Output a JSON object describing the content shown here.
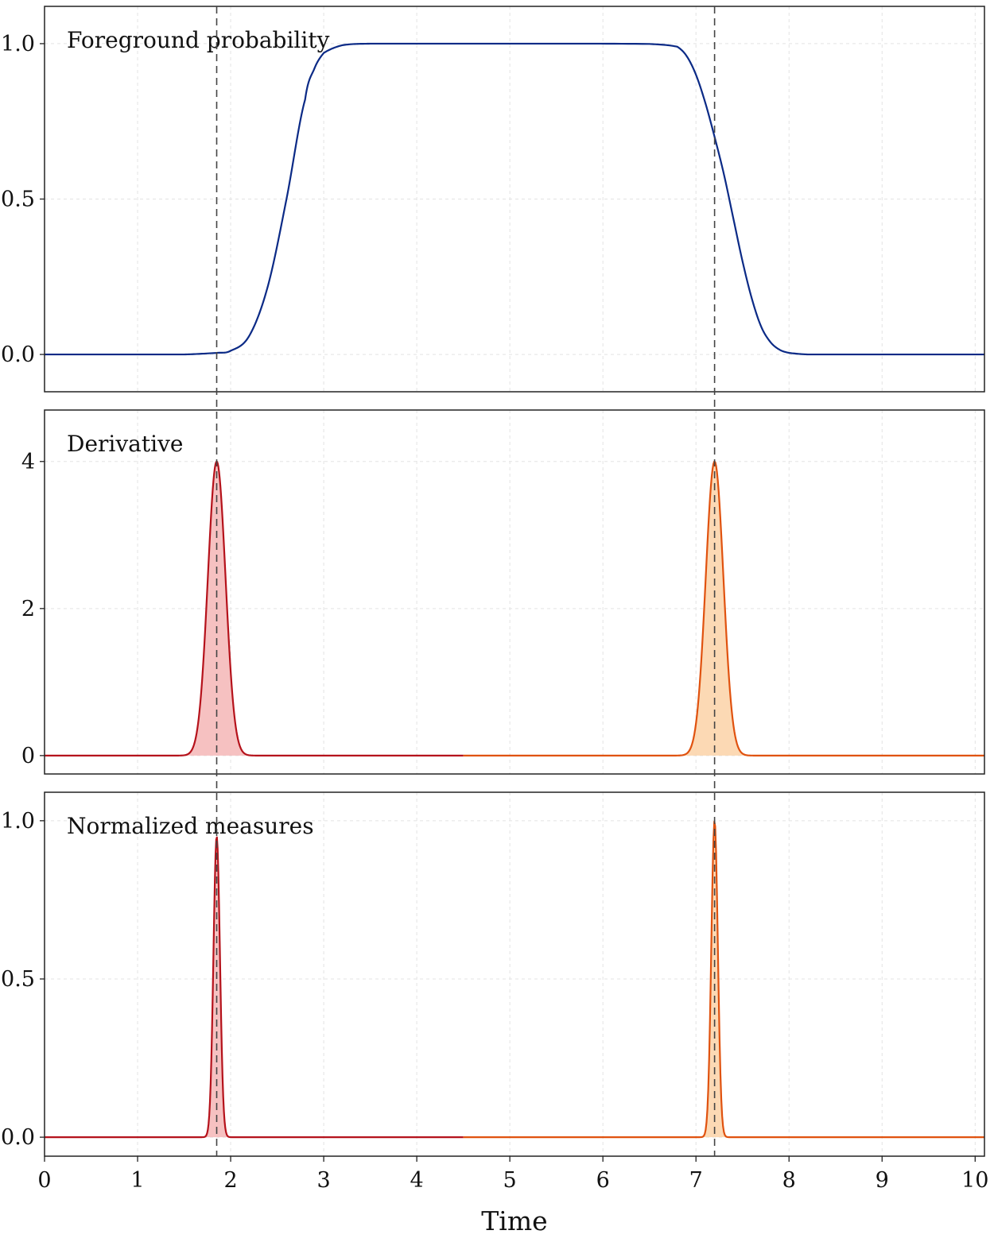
{
  "chart_data": {
    "type": "line",
    "shared_x": {
      "label": "Time",
      "xlim": [
        0,
        10.1
      ],
      "ticks": [
        0,
        1,
        2,
        3,
        4,
        5,
        6,
        7,
        8,
        9,
        10
      ],
      "tick_labels": [
        "0",
        "1",
        "2",
        "3",
        "4",
        "5",
        "6",
        "7",
        "8",
        "9",
        "10"
      ]
    },
    "vlines": [
      1.85,
      7.2
    ],
    "grid": true,
    "panels": [
      {
        "title": "Foreground probability",
        "ylim": [
          -0.12,
          1.12
        ],
        "yticks": [
          0.0,
          0.5,
          1.0
        ],
        "ytick_labels": [
          "0.0",
          "0.5",
          "1.0"
        ],
        "series": [
          {
            "color": "#0b2a86",
            "fill": false,
            "x": [
              0,
              1.5,
              1.85,
              2.0,
              2.2,
              2.4,
              2.6,
              2.8,
              2.9,
              3.0,
              3.2,
              3.5,
              5.0,
              6.5,
              6.8,
              6.9,
              7.0,
              7.1,
              7.2,
              7.3,
              7.4,
              7.5,
              7.6,
              7.7,
              7.8,
              7.9,
              8.0,
              8.2,
              10.1
            ],
            "y": [
              0,
              0,
              0.005,
              0.012,
              0.06,
              0.22,
              0.5,
              0.82,
              0.92,
              0.97,
              0.995,
              1.0,
              1.0,
              0.999,
              0.99,
              0.96,
              0.9,
              0.81,
              0.7,
              0.58,
              0.44,
              0.3,
              0.18,
              0.09,
              0.04,
              0.015,
              0.005,
              0.0,
              0.0
            ]
          }
        ]
      },
      {
        "title": "Derivative",
        "ylim": [
          -0.25,
          4.7
        ],
        "yticks": [
          0,
          2,
          4
        ],
        "ytick_labels": [
          "0",
          "2",
          "4"
        ],
        "series": [
          {
            "color": "#b5121b",
            "fill": true,
            "fill_color": "#f4b6b6",
            "peak": {
              "center": 1.85,
              "height": 4.0,
              "sigma": 0.095
            },
            "x_range": [
              0,
              4.5
            ]
          },
          {
            "color": "#e0520f",
            "fill": true,
            "fill_color": "#fbd2a7",
            "peak": {
              "center": 7.2,
              "height": 4.0,
              "sigma": 0.095
            },
            "x_range": [
              4.5,
              10.1
            ]
          }
        ]
      },
      {
        "title": "Normalized measures",
        "ylim": [
          -0.06,
          1.09
        ],
        "yticks": [
          0.0,
          0.5,
          1.0
        ],
        "ytick_labels": [
          "0.0",
          "0.5",
          "1.0"
        ],
        "series": [
          {
            "color": "#b5121b",
            "fill": true,
            "fill_color": "#f4b6b6",
            "peak": {
              "center": 1.85,
              "height": 0.95,
              "sigma": 0.035
            },
            "x_range": [
              0,
              4.5
            ]
          },
          {
            "color": "#e0520f",
            "fill": true,
            "fill_color": "#fbd2a7",
            "peak": {
              "center": 7.2,
              "height": 1.0,
              "sigma": 0.035
            },
            "x_range": [
              4.5,
              10.1
            ]
          }
        ]
      }
    ]
  }
}
